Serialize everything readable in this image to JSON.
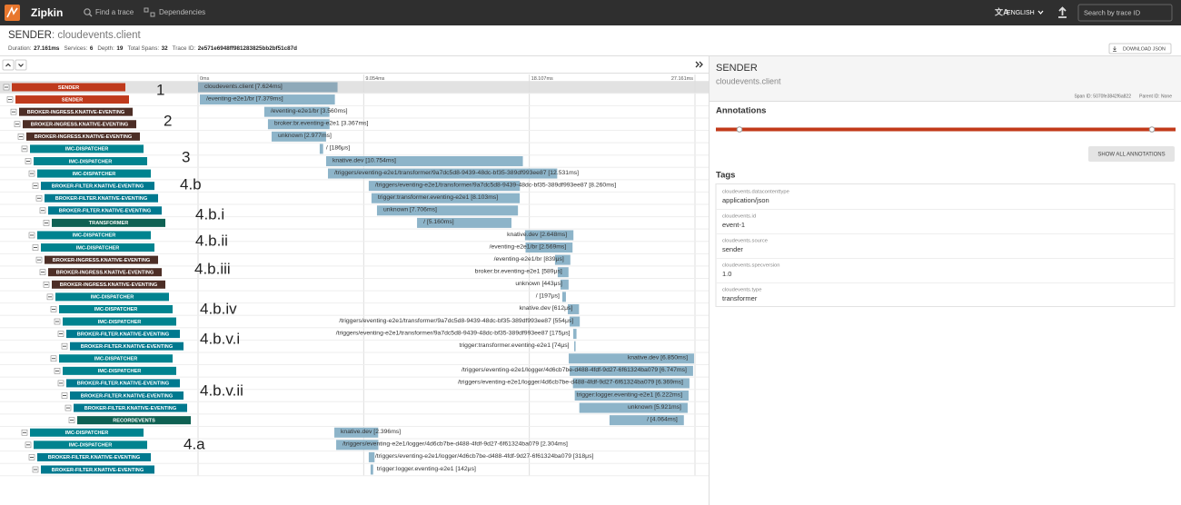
{
  "header": {
    "brand": "Zipkin",
    "nav": [
      "Find a trace",
      "Dependencies"
    ],
    "language": "ENGLISH",
    "search_placeholder": "Search by trace ID"
  },
  "trace": {
    "service": "SENDER",
    "name": ": cloudevents.client",
    "summary": [
      {
        "label": "Duration:",
        "value": "27.161ms"
      },
      {
        "label": "Services:",
        "value": "6"
      },
      {
        "label": "Depth:",
        "value": "19"
      },
      {
        "label": "Total Spans:",
        "value": "32"
      },
      {
        "label": "Trace ID:",
        "value": "2e571e6948ff981283825bb2bf51c87d"
      }
    ],
    "download": "DOWNLOAD JSON"
  },
  "timeline": {
    "ticks": [
      {
        "value": 0,
        "label": "0ms"
      },
      {
        "value": 9.054,
        "label": "9.054ms"
      },
      {
        "value": 18.107,
        "label": "18.107ms"
      },
      {
        "value": 27.161,
        "label": "27.161ms"
      }
    ]
  },
  "spans": [
    {
      "service": "SENDER",
      "color": "#bf3a1c",
      "depth": 0,
      "start": 0,
      "duration": 7.624,
      "label": "cloudevents.client [7.624ms]"
    },
    {
      "service": "SENDER",
      "color": "#bf3a1c",
      "depth": 1,
      "start": 0.1,
      "duration": 7.379,
      "label": "/eventing-e2e1/br [7.379ms]"
    },
    {
      "service": "BROKER-INGRESS.KNATIVE-EVENTING",
      "color": "#4d2e26",
      "depth": 2,
      "start": 3.62,
      "duration": 3.56,
      "label": "/eventing-e2e1/br [3.560ms]"
    },
    {
      "service": "BROKER-INGRESS.KNATIVE-EVENTING",
      "color": "#4d2e26",
      "depth": 3,
      "start": 3.82,
      "duration": 3.367,
      "label": "broker:br.eventing-e2e1 [3.367ms]"
    },
    {
      "service": "BROKER-INGRESS.KNATIVE-EVENTING",
      "color": "#4d2e26",
      "depth": 4,
      "start": 4.02,
      "duration": 2.977,
      "label": "unknown [2.977ms]"
    },
    {
      "service": "IMC-DISPATCHER",
      "color": "#00838f",
      "depth": 5,
      "start": 6.65,
      "duration": 0.186,
      "label": "/ [186μs]"
    },
    {
      "service": "IMC-DISPATCHER",
      "color": "#00838f",
      "depth": 6,
      "start": 7.0,
      "duration": 10.754,
      "label": "knative.dev [10.754ms]"
    },
    {
      "service": "IMC-DISPATCHER",
      "color": "#00838f",
      "depth": 7,
      "start": 7.1,
      "duration": 12.531,
      "label": "/triggers/eventing-e2e1/transformer/9a7dc5d8-9439-48dc-bf35-389df993ee87 [12.531ms]"
    },
    {
      "service": "BROKER-FILTER.KNATIVE-EVENTING",
      "color": "#00798f",
      "depth": 8,
      "start": 9.33,
      "duration": 8.26,
      "label": "/triggers/eventing-e2e1/transformer/9a7dc5d8-9439-48dc-bf35-389df993ee87 [8.260ms]"
    },
    {
      "service": "BROKER-FILTER.KNATIVE-EVENTING",
      "color": "#00798f",
      "depth": 9,
      "start": 9.48,
      "duration": 8.103,
      "label": "trigger:transformer.eventing-e2e1 [8.103ms]"
    },
    {
      "service": "BROKER-FILTER.KNATIVE-EVENTING",
      "color": "#00798f",
      "depth": 10,
      "start": 9.78,
      "duration": 7.706,
      "label": "unknown [7.706ms]"
    },
    {
      "service": "TRANSFORMER",
      "color": "#0f6153",
      "depth": 11,
      "start": 11.97,
      "duration": 5.16,
      "label": "/ [5.160ms]"
    },
    {
      "service": "IMC-DISPATCHER",
      "color": "#00838f",
      "depth": 7,
      "start": 17.87,
      "duration": 2.648,
      "label": "knative.dev [2.648ms]"
    },
    {
      "service": "IMC-DISPATCHER",
      "color": "#00838f",
      "depth": 8,
      "start": 17.9,
      "duration": 2.569,
      "label": "/eventing-e2e1/br [2.569ms]"
    },
    {
      "service": "BROKER-INGRESS.KNATIVE-EVENTING",
      "color": "#4d2e26",
      "depth": 9,
      "start": 19.51,
      "duration": 0.839,
      "label": "/eventing-e2e1/br [839μs]"
    },
    {
      "service": "BROKER-INGRESS.KNATIVE-EVENTING",
      "color": "#4d2e26",
      "depth": 10,
      "start": 19.66,
      "duration": 0.589,
      "label": "broker:br.eventing-e2e1 [589μs]"
    },
    {
      "service": "BROKER-INGRESS.KNATIVE-EVENTING",
      "color": "#4d2e26",
      "depth": 11,
      "start": 19.81,
      "duration": 0.443,
      "label": "unknown [443μs]"
    },
    {
      "service": "IMC-DISPATCHER",
      "color": "#00838f",
      "depth": 12,
      "start": 19.91,
      "duration": 0.197,
      "label": "/ [197μs]"
    },
    {
      "service": "IMC-DISPATCHER",
      "color": "#00838f",
      "depth": 13,
      "start": 20.21,
      "duration": 0.612,
      "label": "knative.dev [612μs]"
    },
    {
      "service": "IMC-DISPATCHER",
      "color": "#00838f",
      "depth": 14,
      "start": 20.31,
      "duration": 0.554,
      "label": "/triggers/eventing-e2e1/transformer/9a7dc5d8-9439-48dc-bf35-389df993ee87 [554μs]"
    },
    {
      "service": "BROKER-FILTER.KNATIVE-EVENTING",
      "color": "#00798f",
      "depth": 15,
      "start": 20.51,
      "duration": 0.175,
      "label": "/triggers/eventing-e2e1/transformer/9a7dc5d8-9439-48dc-bf35-389df993ee87 [175μs]"
    },
    {
      "service": "BROKER-FILTER.KNATIVE-EVENTING",
      "color": "#00798f",
      "depth": 16,
      "start": 20.56,
      "duration": 0.074,
      "label": "trigger:transformer.eventing-e2e1 [74μs]"
    },
    {
      "service": "IMC-DISPATCHER",
      "color": "#00838f",
      "depth": 13,
      "start": 20.26,
      "duration": 6.85,
      "label": "knative.dev [6.850ms]"
    },
    {
      "service": "IMC-DISPATCHER",
      "color": "#00838f",
      "depth": 14,
      "start": 20.31,
      "duration": 6.747,
      "label": "/triggers/eventing-e2e1/logger/4d6cb7be-d488-4fdf-9d27-6f61324ba079 [6.747ms]"
    },
    {
      "service": "BROKER-FILTER.KNATIVE-EVENTING",
      "color": "#00798f",
      "depth": 15,
      "start": 20.49,
      "duration": 6.369,
      "label": "/triggers/eventing-e2e1/logger/4d6cb7be-d488-4fdf-9d27-6f61324ba079 [6.369ms]"
    },
    {
      "service": "BROKER-FILTER.KNATIVE-EVENTING",
      "color": "#00798f",
      "depth": 16,
      "start": 20.59,
      "duration": 6.222,
      "label": "trigger:logger.eventing-e2e1 [6.222ms]"
    },
    {
      "service": "BROKER-FILTER.KNATIVE-EVENTING",
      "color": "#00798f",
      "depth": 17,
      "start": 20.84,
      "duration": 5.921,
      "label": "unknown [5.921ms]"
    },
    {
      "service": "RECORDEVENTS",
      "color": "#0f6153",
      "depth": 18,
      "start": 22.49,
      "duration": 4.064,
      "label": "/ [4.064ms]"
    },
    {
      "service": "IMC-DISPATCHER",
      "color": "#00838f",
      "depth": 5,
      "start": 7.45,
      "duration": 2.396,
      "label": "knative.dev [2.396ms]"
    },
    {
      "service": "IMC-DISPATCHER",
      "color": "#00838f",
      "depth": 6,
      "start": 7.55,
      "duration": 2.304,
      "label": "/triggers/eventing-e2e1/logger/4d6cb7be-d488-4fdf-9d27-6f61324ba079 [2.304ms]"
    },
    {
      "service": "BROKER-FILTER.KNATIVE-EVENTING",
      "color": "#00798f",
      "depth": 7,
      "start": 9.33,
      "duration": 0.318,
      "label": "/triggers/eventing-e2e1/logger/4d6cb7be-d488-4fdf-9d27-6f61324ba079 [318μs]"
    },
    {
      "service": "BROKER-FILTER.KNATIVE-EVENTING",
      "color": "#00798f",
      "depth": 8,
      "start": 9.43,
      "duration": 0.142,
      "label": "trigger:logger.eventing-e2e1 [142μs]"
    }
  ],
  "annotations": [
    "1",
    "2",
    "3",
    "4.b",
    "4.b.i",
    "4.b.ii",
    "4.b.iii",
    "4.b.iv",
    "4.b.v.i",
    "4.b.v.ii",
    "4.a"
  ],
  "detail": {
    "service": "SENDER",
    "name": "cloudevents.client",
    "span_id": "Span ID: 5070fe3842f6a822",
    "parent_id": "Parent ID: None",
    "annotations_title": "Annotations",
    "show_all": "SHOW ALL ANNOTATIONS",
    "tags_title": "Tags",
    "tags": [
      {
        "key": "cloudevents.datacontenttype",
        "value": "application/json"
      },
      {
        "key": "cloudevents.id",
        "value": "event-1"
      },
      {
        "key": "cloudevents.source",
        "value": "sender"
      },
      {
        "key": "cloudevents.specversion",
        "value": "1.0"
      },
      {
        "key": "cloudevents.type",
        "value": "transformer"
      }
    ]
  }
}
